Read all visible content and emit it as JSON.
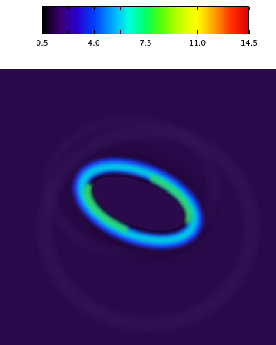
{
  "colorbar": {
    "min": 0.5,
    "max": 14.5,
    "tick_labels": [
      "0.5",
      "4.0",
      "7.5",
      "11.0",
      "14.5"
    ],
    "tick_values": [
      0.5,
      4.0,
      7.5,
      11.0,
      14.5
    ],
    "minor_tick_values": [
      0.5,
      2.25,
      4.0,
      5.75,
      7.5,
      9.25,
      11.0,
      12.75,
      14.5
    ],
    "colormap": [
      "#000000",
      "#3a0070",
      "#2a00d0",
      "#0040ff",
      "#00a0ff",
      "#00ffe0",
      "#00ff60",
      "#60ff00",
      "#c8ff00",
      "#ffff00",
      "#ffa000",
      "#ff3000",
      "#e00000"
    ]
  },
  "image": {
    "background_color": "#2a0a4a",
    "ring_colors": {
      "outer": "#1a40ff",
      "mid": "#00c8e6",
      "hot": "#30e060",
      "inner_shadow": "#150528",
      "halo": "#3b1a63"
    }
  }
}
